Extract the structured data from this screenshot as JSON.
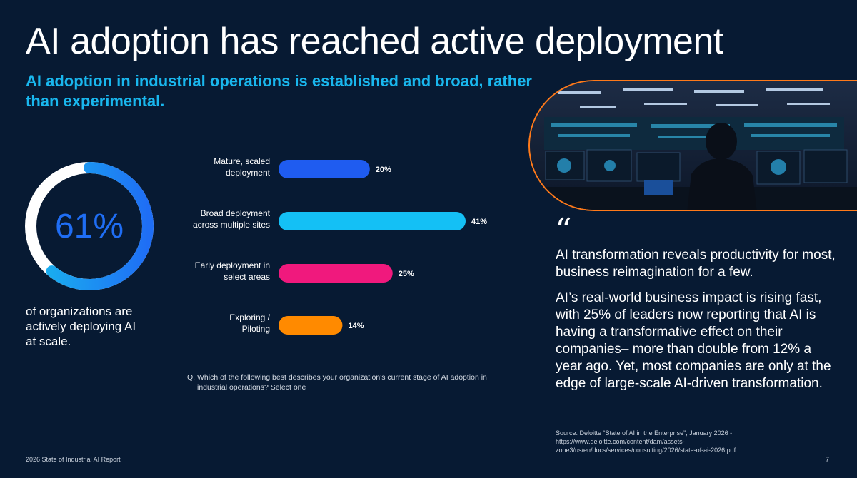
{
  "header": {
    "title": "AI adoption has reached active deployment",
    "subtitle": "AI adoption in industrial operations is established and broad, rather than experimental."
  },
  "kpi": {
    "value_label": "61%",
    "value": 61,
    "caption": "of organizations are actively deploying AI at scale.",
    "colors": {
      "fill": "#1f6ef5",
      "fill_end": "#19b7ee",
      "remainder": "#ffffff"
    }
  },
  "chart_data": {
    "type": "bar",
    "orientation": "horizontal",
    "categories": [
      [
        "Mature, scaled",
        "deployment"
      ],
      [
        "Broad deployment",
        "across multiple sites"
      ],
      [
        "Early deployment in",
        "select areas"
      ],
      [
        "Exploring /",
        "Piloting"
      ]
    ],
    "values": [
      20,
      41,
      25,
      14
    ],
    "value_labels": [
      "20%",
      "41%",
      "25%",
      "14%"
    ],
    "colors": [
      "#1f5cf0",
      "#14c0f5",
      "#f0197d",
      "#ff8a00"
    ],
    "title": "",
    "xlabel": "",
    "ylabel": "",
    "xlim": [
      0,
      41
    ]
  },
  "question": {
    "prefix": "Q.",
    "text": "Which of the following best describes your organization's current stage of AI adoption in industrial operations? Select one"
  },
  "photo": {
    "icon": "control-room-photo"
  },
  "quote": {
    "mark": "“",
    "headline": "AI transformation reveals productivity for most, business reimagination for a few.",
    "body": "AI’s real-world business impact is rising fast, with 25% of leaders now reporting that AI is having a transformative effect on their companies– more than double from 12% a year ago. Yet, most companies are only at the edge of large-scale AI-driven transformation.",
    "source": "Source: Deloitte “State of AI in the Enterprise”, January 2026 - https://www.deloitte.com/content/dam/assets-zone3/us/en/docs/services/consulting/2026/state-of-ai-2026.pdf"
  },
  "footer": {
    "report": "2026 State of Industrial AI Report",
    "page": "7"
  }
}
